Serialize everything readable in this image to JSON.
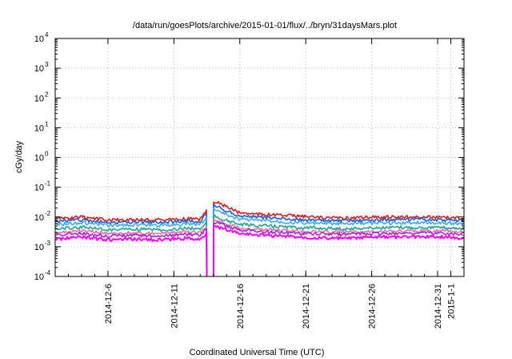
{
  "chart_data": {
    "type": "line",
    "title": "/data/run/goesPlots/archive/2015-01-01/flux/../bryn/31daysMars.plot",
    "xlabel": "Coordinated Universal Time (UTC)",
    "ylabel": "cGy/day",
    "yscale": "log",
    "ylim": [
      0.0001,
      10000
    ],
    "xlim": [
      "2014-12-02",
      "2015-01-02"
    ],
    "grid": true,
    "legend": "none",
    "y_ticks": [
      {
        "base": "10",
        "exp": "-4"
      },
      {
        "base": "10",
        "exp": "-3"
      },
      {
        "base": "10",
        "exp": "-2"
      },
      {
        "base": "10",
        "exp": "-1"
      },
      {
        "base": "10",
        "exp": "0"
      },
      {
        "base": "10",
        "exp": "1"
      },
      {
        "base": "10",
        "exp": "2"
      },
      {
        "base": "10",
        "exp": "3"
      },
      {
        "base": "10",
        "exp": "4"
      }
    ],
    "x_ticks": [
      {
        "date": "2014-12-06",
        "label": "2014-12-6"
      },
      {
        "date": "2014-12-11",
        "label": "2014-12-11"
      },
      {
        "date": "2014-12-16",
        "label": "2014-12-16"
      },
      {
        "date": "2014-12-21",
        "label": "2014-12-21"
      },
      {
        "date": "2014-12-26",
        "label": "2014-12-26"
      },
      {
        "date": "2014-12-31",
        "label": "2014-12-31"
      },
      {
        "date": "2015-01-01",
        "label": "2015-1-1"
      }
    ],
    "gap": {
      "start": "2014-12-13T12:00",
      "end": "2014-12-14T00:00"
    },
    "x": [
      "2014-12-02",
      "2014-12-04",
      "2014-12-06",
      "2014-12-08",
      "2014-12-10",
      "2014-12-12",
      "2014-12-13",
      "2014-12-14",
      "2014-12-15",
      "2014-12-16",
      "2014-12-18",
      "2014-12-20",
      "2014-12-22",
      "2014-12-24",
      "2014-12-26",
      "2014-12-28",
      "2014-12-30",
      "2015-01-01",
      "2015-01-02"
    ],
    "series": [
      {
        "color": "#e41a1c",
        "values": [
          0.0085,
          0.01,
          0.008,
          0.0082,
          0.008,
          0.0088,
          0.0085,
          0.035,
          0.022,
          0.014,
          0.012,
          0.011,
          0.0095,
          0.0092,
          0.0098,
          0.01,
          0.01,
          0.0095,
          0.0092
        ]
      },
      {
        "color": "#1e5cd6",
        "values": [
          0.007,
          0.008,
          0.0065,
          0.0068,
          0.0066,
          0.0072,
          0.007,
          0.025,
          0.016,
          0.011,
          0.0095,
          0.0085,
          0.0076,
          0.0074,
          0.0078,
          0.008,
          0.0082,
          0.0078,
          0.0075
        ]
      },
      {
        "color": "#3fa9f5",
        "values": [
          0.0056,
          0.0064,
          0.0052,
          0.0054,
          0.0052,
          0.0058,
          0.0056,
          0.019,
          0.012,
          0.0085,
          0.0075,
          0.0066,
          0.006,
          0.0058,
          0.0062,
          0.0063,
          0.0065,
          0.0062,
          0.0059
        ]
      },
      {
        "color": "#21a88a",
        "values": [
          0.004,
          0.0046,
          0.0037,
          0.0039,
          0.0037,
          0.0041,
          0.004,
          0.011,
          0.0075,
          0.0056,
          0.005,
          0.0045,
          0.0042,
          0.004,
          0.0043,
          0.0044,
          0.0045,
          0.0043,
          0.0041
        ]
      },
      {
        "color": "#ff69b4",
        "values": [
          0.003,
          0.0034,
          0.0028,
          0.0029,
          0.0028,
          0.0031,
          0.003,
          0.008,
          0.0058,
          0.0043,
          0.0038,
          0.0034,
          0.0032,
          0.0031,
          0.0033,
          0.0033,
          0.0034,
          0.0033,
          0.0031
        ]
      },
      {
        "color": "#9b30d0",
        "values": [
          0.0025,
          0.0028,
          0.0023,
          0.0024,
          0.0023,
          0.0026,
          0.0025,
          0.0068,
          0.005,
          0.0037,
          0.0032,
          0.0029,
          0.0027,
          0.0026,
          0.0028,
          0.0028,
          0.0029,
          0.0028,
          0.0026
        ]
      },
      {
        "color": "#ff00ff",
        "values": [
          0.0018,
          0.0021,
          0.0017,
          0.0018,
          0.0017,
          0.0019,
          0.0018,
          0.005,
          0.0038,
          0.0028,
          0.0024,
          0.0022,
          0.002,
          0.0019,
          0.0021,
          0.0021,
          0.0022,
          0.0021,
          0.0019
        ]
      }
    ]
  }
}
